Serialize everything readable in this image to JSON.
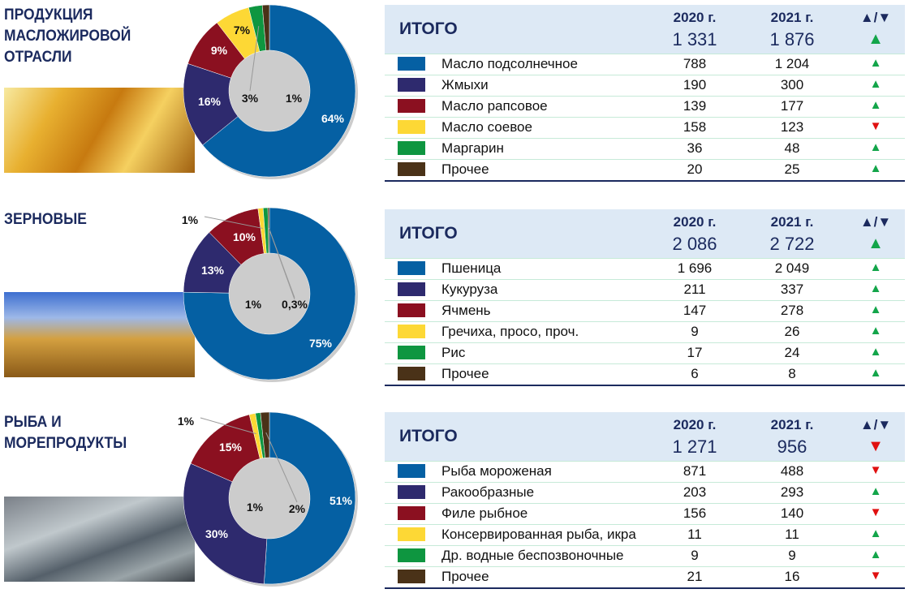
{
  "colors": [
    "#0560a3",
    "#2e2a6e",
    "#8b1020",
    "#fdd835",
    "#0e9640",
    "#4a3218"
  ],
  "header": {
    "total_label": "ИТОГО",
    "col1": "2020 г.",
    "col2": "2021 г.",
    "col3": "▲/▼"
  },
  "chart_data": [
    {
      "type": "pie",
      "title": "ПРОДУКЦИЯ\nМАСЛОЖИРОВОЙ\nОТРАСЛИ",
      "donut": true,
      "total": {
        "y2020": "1 331",
        "y2021": "1 876",
        "trend": "up"
      },
      "categories": [
        "Масло подсолнечное",
        "Жмыхи",
        "Масло рапсовое",
        "Масло соевое",
        "Маргарин",
        "Прочее"
      ],
      "y2020": [
        "788",
        "190",
        "139",
        "158",
        "36",
        "20"
      ],
      "values": [
        1204,
        300,
        177,
        123,
        48,
        25
      ],
      "y2021": [
        "1 204",
        "300",
        "177",
        "123",
        "48",
        "25"
      ],
      "trend": [
        "up",
        "up",
        "up",
        "down",
        "up",
        "up"
      ],
      "labels": [
        "64%",
        "16%",
        "9%",
        "7%",
        "3%",
        "1%"
      ]
    },
    {
      "type": "pie",
      "title": "ЗЕРНОВЫЕ",
      "donut": true,
      "total": {
        "y2020": "2 086",
        "y2021": "2 722",
        "trend": "up"
      },
      "categories": [
        "Пшеница",
        "Кукуруза",
        "Ячмень",
        "Гречиха, просо, проч.",
        "Рис",
        "Прочее"
      ],
      "y2020": [
        "1 696",
        "211",
        "147",
        "9",
        "17",
        "6"
      ],
      "values": [
        2049,
        337,
        278,
        26,
        24,
        8
      ],
      "y2021": [
        "2 049",
        "337",
        "278",
        "26",
        "24",
        "8"
      ],
      "trend": [
        "up",
        "up",
        "up",
        "up",
        "up",
        "up"
      ],
      "labels": [
        "75%",
        "13%",
        "10%",
        "1%",
        "1%",
        "0,3%"
      ]
    },
    {
      "type": "pie",
      "title": "РЫБА И\nМОРЕПРОДУКТЫ",
      "donut": true,
      "total": {
        "y2020": "1 271",
        "y2021": "956",
        "trend": "down"
      },
      "categories": [
        "Рыба мороженая",
        "Ракообразные",
        "Филе рыбное",
        "Консервированная рыба, икра",
        "Др. водные беспозвоночные",
        "Прочее"
      ],
      "y2020": [
        "871",
        "203",
        "156",
        "11",
        "9",
        "21"
      ],
      "values": [
        488,
        293,
        140,
        11,
        9,
        16
      ],
      "y2021": [
        "488",
        "293",
        "140",
        "11",
        "9",
        "16"
      ],
      "trend": [
        "down",
        "up",
        "down",
        "up",
        "up",
        "down"
      ],
      "labels": [
        "51%",
        "30%",
        "15%",
        "1%",
        "1%",
        "2%"
      ]
    }
  ]
}
